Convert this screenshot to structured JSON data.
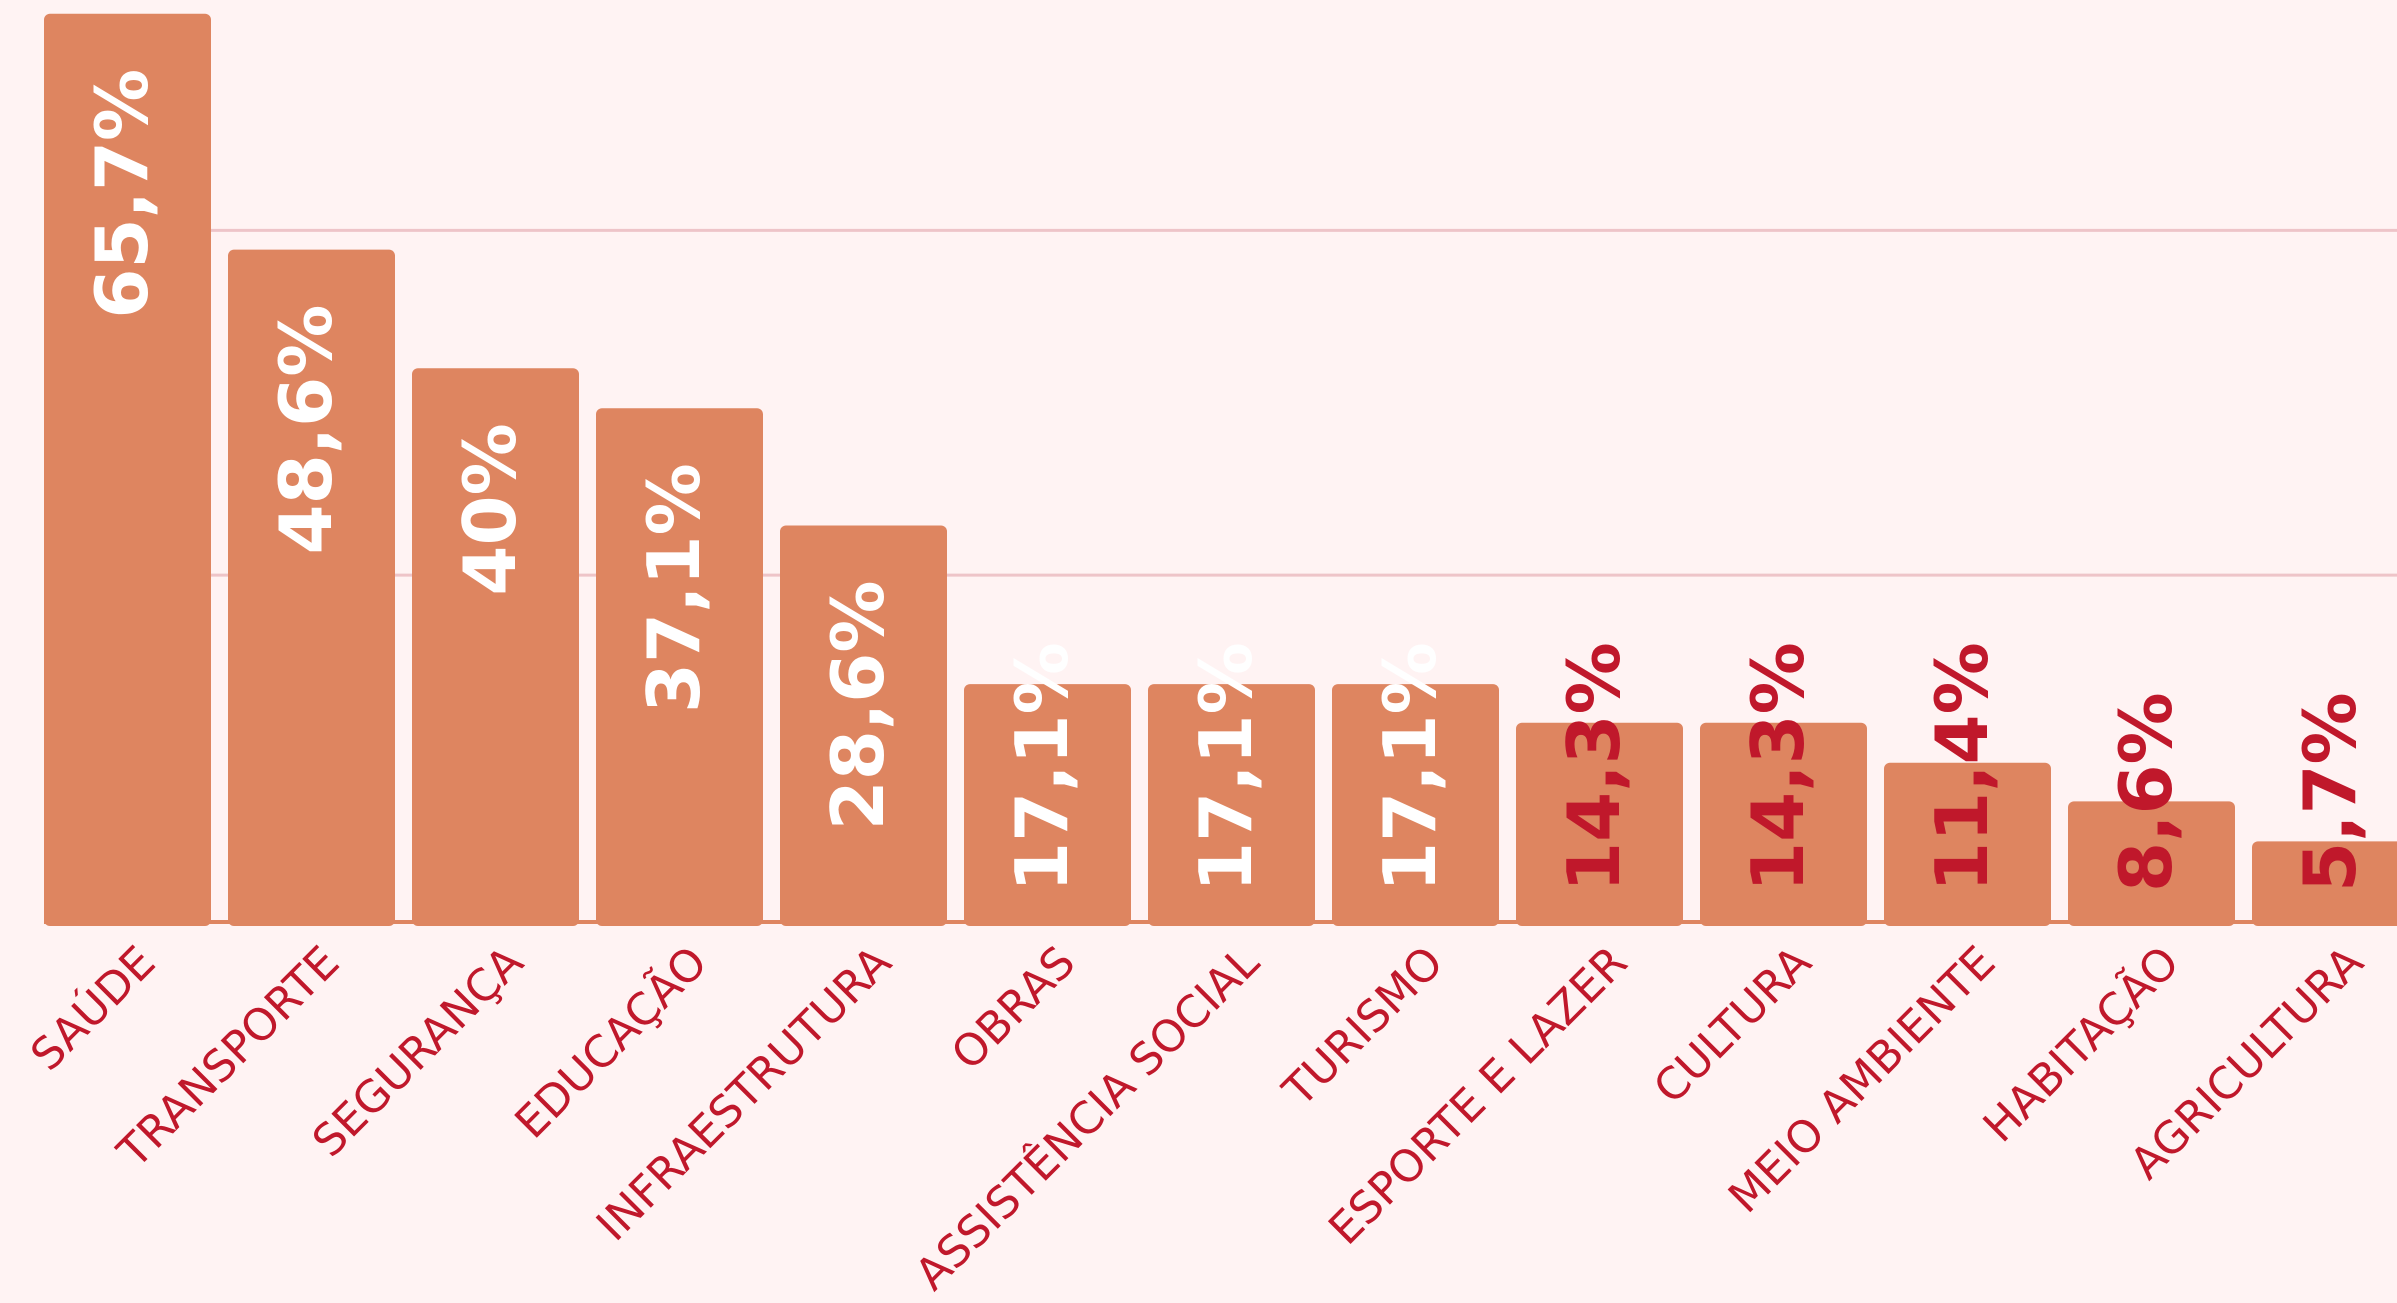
{
  "chart_data": {
    "type": "bar",
    "categories": [
      "SAÚDE",
      "TRANSPORTE",
      "SEGURANÇA",
      "EDUCAÇÃO",
      "INFRAESTRUTURA",
      "OBRAS",
      "ASSISTÊNCIA SOCIAL",
      "TURISMO",
      "ESPORTE E LAZER",
      "CULTURA",
      "MEIO AMBIENTE",
      "HABITAÇÃO",
      "AGRICULTURA"
    ],
    "values": [
      65.7,
      48.6,
      40,
      37.1,
      28.6,
      17.1,
      17.1,
      17.1,
      14.3,
      14.3,
      11.4,
      8.6,
      5.7
    ],
    "value_labels": [
      "65,7%",
      "48,6%",
      "40%",
      "37,1%",
      "28,6%",
      "17,1%",
      "17,1%",
      "17,1%",
      "14,3%",
      "14,3%",
      "11,4%",
      "8,6%",
      "5,7%"
    ],
    "value_label_colors": [
      "#ffffff",
      "#ffffff",
      "#ffffff",
      "#ffffff",
      "#ffffff",
      "#ffffff",
      "#ffffff",
      "#ffffff",
      "#c0182b",
      "#c0182b",
      "#c0182b",
      "#c0182b",
      "#c0182b"
    ],
    "color": "#de8560",
    "ylim": [
      0,
      66.7
    ],
    "yticks": [
      25,
      50
    ],
    "grid": true
  }
}
